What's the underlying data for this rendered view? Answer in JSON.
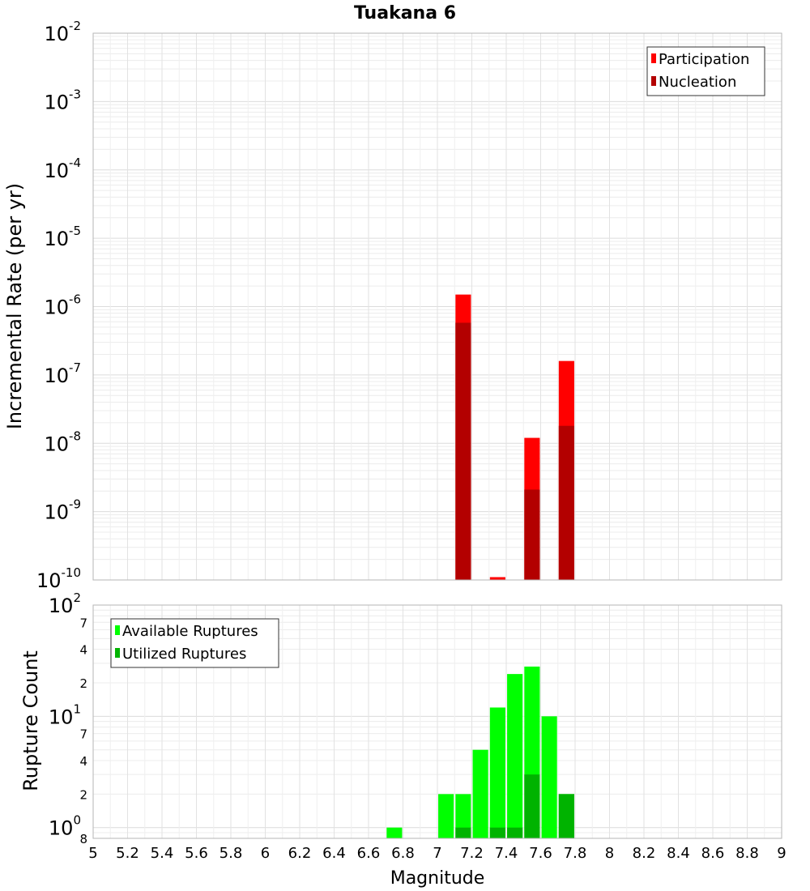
{
  "chart_data": [
    {
      "type": "bar",
      "title": "Tuakana 6",
      "ylabel": "Incremental Rate (per yr)",
      "xlabel": "",
      "yscale": "log",
      "xlim": [
        5,
        9
      ],
      "ylim": [
        1e-10,
        0.01
      ],
      "grid": true,
      "legend_position": "top-right",
      "y_ticks": [
        "10^-10",
        "10^-9",
        "10^-8",
        "10^-7",
        "10^-6",
        "10^-5",
        "10^-4",
        "10^-3",
        "10^-2"
      ],
      "bar_width": 0.09,
      "series": [
        {
          "name": "Participation",
          "color": "#ff0000",
          "x": [
            7.15,
            7.35,
            7.55,
            7.75
          ],
          "values": [
            1.5e-06,
            1.1e-10,
            1.2e-08,
            1.6e-07
          ]
        },
        {
          "name": "Nucleation",
          "color": "#b30000",
          "x": [
            7.15,
            7.55,
            7.75
          ],
          "values": [
            5.8e-07,
            2.1e-09,
            1.8e-08
          ]
        }
      ]
    },
    {
      "type": "bar",
      "title": "",
      "ylabel": "Rupture Count",
      "xlabel": "Magnitude",
      "yscale": "log",
      "xlim": [
        5,
        9
      ],
      "ylim": [
        0.8,
        100
      ],
      "grid": true,
      "legend_position": "top-left",
      "x_ticks": [
        "5",
        "5.2",
        "5.4",
        "5.6",
        "5.8",
        "6",
        "6.2",
        "6.4",
        "6.6",
        "6.8",
        "7",
        "7.2",
        "7.4",
        "7.6",
        "7.8",
        "8",
        "8.2",
        "8.4",
        "8.6",
        "8.8",
        "9"
      ],
      "y_ticks": [
        "10^0",
        "10^1",
        "10^2"
      ],
      "y_minor_ticks": [
        "8",
        "2",
        "4",
        "7",
        "2",
        "4",
        "7"
      ],
      "bar_width": 0.09,
      "series": [
        {
          "name": "Available Ruptures",
          "color": "#00ff00",
          "x": [
            6.75,
            7.05,
            7.15,
            7.25,
            7.35,
            7.45,
            7.55,
            7.65,
            7.75
          ],
          "values": [
            1,
            2,
            2,
            5,
            12,
            24,
            28,
            10,
            2
          ]
        },
        {
          "name": "Utilized Ruptures",
          "color": "#00b300",
          "x": [
            7.15,
            7.35,
            7.45,
            7.55,
            7.75
          ],
          "values": [
            1,
            1,
            1,
            3,
            2
          ]
        }
      ]
    }
  ]
}
